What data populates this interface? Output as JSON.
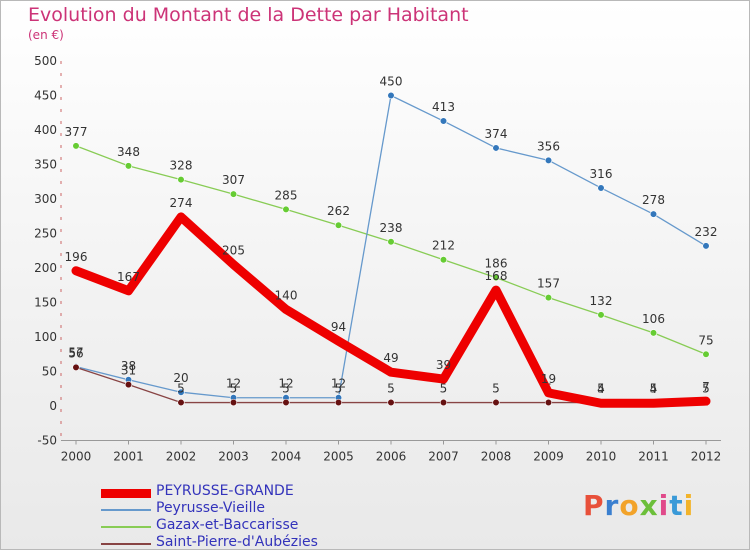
{
  "header": {
    "title": "Evolution du Montant de la Dette par Habitant",
    "unit": "(en €)"
  },
  "logo": {
    "chars": [
      "P",
      "r",
      "o",
      "x",
      "i",
      "t",
      "i"
    ],
    "colors": [
      "#e8503a",
      "#3a7fcf",
      "#f2a32a",
      "#6cbf3a",
      "#e04a8a",
      "#3a9ad8",
      "#f2b32a"
    ]
  },
  "chart_data": {
    "type": "line",
    "title": "Evolution du Montant de la Dette par Habitant",
    "ylabel": "(en €)",
    "xlabel": "",
    "ylim": [
      -50,
      500
    ],
    "yticks": [
      -50,
      0,
      50,
      100,
      150,
      200,
      250,
      300,
      350,
      400,
      450,
      500
    ],
    "grid": false,
    "legend_position": "bottom-left",
    "x": [
      "2000",
      "2001",
      "2002",
      "2003",
      "2004",
      "2005",
      "2006",
      "2007",
      "2008",
      "2009",
      "2010",
      "2011",
      "2012"
    ],
    "series": [
      {
        "name": "Gazax-et-Baccarisse",
        "color": "#88cc55",
        "marker": "#66cc33",
        "values": [
          377,
          348,
          328,
          307,
          285,
          262,
          238,
          212,
          186,
          157,
          132,
          106,
          75
        ]
      },
      {
        "name": "Peyrusse-Vieille",
        "color": "#6699cc",
        "marker": "#3377bb",
        "values": [
          57,
          38,
          20,
          12,
          12,
          12,
          450,
          413,
          374,
          356,
          316,
          278,
          232
        ]
      },
      {
        "name": "Saint-Pierre-d'Aubézies",
        "color": "#884444",
        "marker": "#661111",
        "values": [
          56,
          31,
          5,
          5,
          5,
          5,
          5,
          5,
          5,
          5,
          5,
          5,
          5
        ]
      },
      {
        "name": "PEYRUSSE-GRANDE",
        "color": "#ee0000",
        "marker": "#ee0000",
        "values": [
          196,
          167,
          274,
          205,
          140,
          94,
          49,
          39,
          168,
          19,
          4,
          4,
          7
        ]
      }
    ]
  }
}
